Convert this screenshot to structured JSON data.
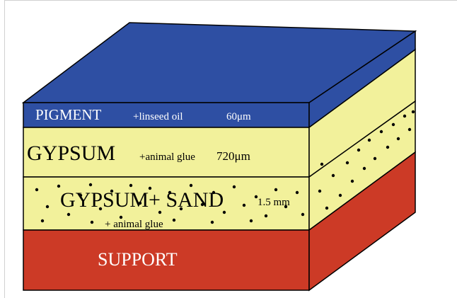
{
  "diagram": {
    "colors": {
      "pigment": "#2e4fa3",
      "gypsum": "#f2f19b",
      "support": "#cc3a26",
      "outline": "#000000",
      "label_light": "#ffffff",
      "label_dark": "#000000"
    },
    "layers": {
      "pigment": {
        "name": "PIGMENT",
        "binder": "+linseed oil",
        "thickness": "60μm"
      },
      "gypsum": {
        "name": "GYPSUM",
        "binder": "+animal glue",
        "thickness": "720μm"
      },
      "gypsum_sand": {
        "name": "GYPSUM+ SAND",
        "binder": "+ animal glue",
        "thickness": "1.5 mm"
      },
      "support": {
        "name": "SUPPORT"
      }
    }
  }
}
